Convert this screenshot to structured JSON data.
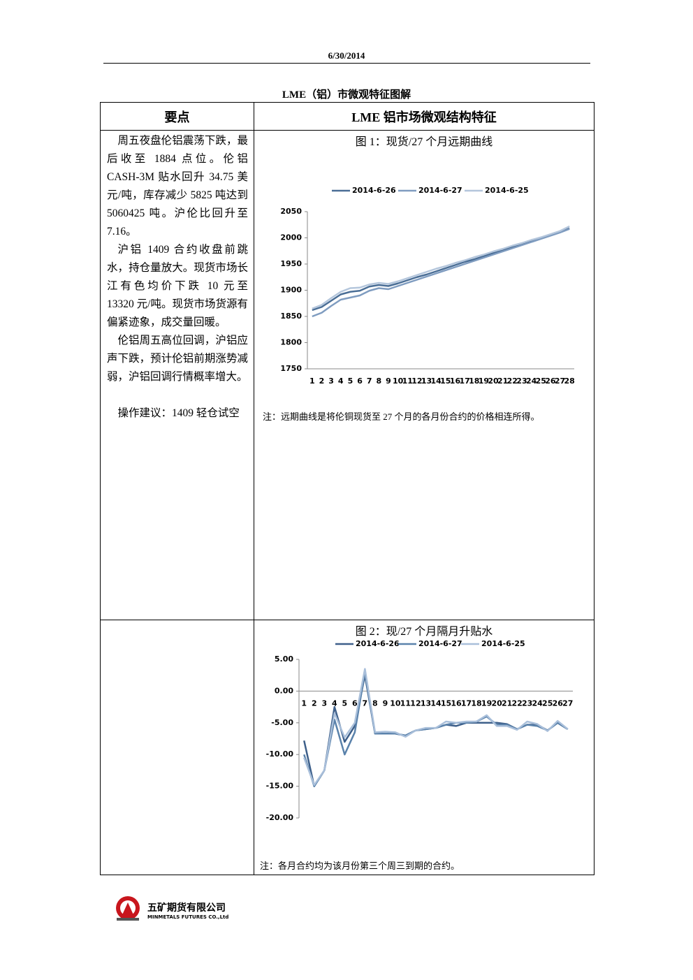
{
  "header": {
    "date": "6/30/2014"
  },
  "title": "LME（铝）市微观特征图解",
  "table": {
    "headers": [
      "要点",
      "LME 铝市场微观结构特征"
    ],
    "paragraphs": [
      "周五夜盘伦铝震荡下跌，最后收至 1884 点位。伦铝 CASH-3M 贴水回升 34.75 美元/吨，库存减少 5825 吨达到 5060425 吨。沪伦比回升至 7.16。",
      "沪铝 1409 合约收盘前跳水，持仓量放大。现货市场长江有色均价下跌 10 元至 13320 元/吨。现货市场货源有偏紧迹象，成交量回暖。",
      "伦铝周五高位回调，沪铝应声下跌，预计伦铝前期涨势减弱，沪铝回调行情概率增大。",
      "操作建议：1409 轻仓试空"
    ]
  },
  "chart_data": [
    {
      "type": "line",
      "title": "图 1：现货/27 个月远期曲线",
      "note": "注：远期曲线是将伦铜现货至 27 个月的各月份合约的价格相连所得。",
      "categories": [
        "1",
        "2",
        "3",
        "4",
        "5",
        "6",
        "7",
        "8",
        "9",
        "10",
        "11",
        "12",
        "13",
        "14",
        "15",
        "16",
        "17",
        "18",
        "19",
        "20",
        "21",
        "22",
        "23",
        "24",
        "25",
        "26",
        "27",
        "28"
      ],
      "series": [
        {
          "name": "2014-6-26",
          "color": "#4a6e96",
          "values": [
            1862,
            1868,
            1880,
            1892,
            1897,
            1899,
            1907,
            1910,
            1908,
            1913,
            1919,
            1925,
            1930,
            1936,
            1942,
            1948,
            1954,
            1959,
            1965,
            1971,
            1977,
            1983,
            1988,
            1994,
            2000,
            2006,
            2012,
            2018
          ]
        },
        {
          "name": "2014-6-27",
          "color": "#7f9cc0",
          "values": [
            1850,
            1857,
            1870,
            1882,
            1886,
            1890,
            1899,
            1904,
            1902,
            1908,
            1914,
            1920,
            1926,
            1932,
            1938,
            1944,
            1950,
            1956,
            1962,
            1968,
            1974,
            1980,
            1986,
            1992,
            1998,
            2004,
            2010,
            2017
          ]
        },
        {
          "name": "2014-6-25",
          "color": "#b4c6dc",
          "values": [
            1865,
            1872,
            1885,
            1897,
            1904,
            1905,
            1911,
            1914,
            1912,
            1917,
            1923,
            1929,
            1935,
            1941,
            1946,
            1952,
            1957,
            1963,
            1968,
            1974,
            1979,
            1985,
            1990,
            1996,
            2001,
            2007,
            2013,
            2022
          ]
        }
      ],
      "ylim": [
        1750,
        2050
      ],
      "yticks": [
        1750,
        1800,
        1850,
        1900,
        1950,
        2000,
        2050
      ],
      "grid": false
    },
    {
      "type": "line",
      "title": "图 2：现/27 个月隔月升贴水",
      "note": "注：各月合约均为该月份第三个周三到期的合约。",
      "categories": [
        "1",
        "2",
        "3",
        "4",
        "5",
        "6",
        "7",
        "8",
        "9",
        "10",
        "11",
        "12",
        "13",
        "14",
        "15",
        "16",
        "17",
        "18",
        "19",
        "20",
        "21",
        "22",
        "23",
        "24",
        "25",
        "26",
        "27"
      ],
      "series": [
        {
          "name": "2014-6-26",
          "color": "#3d5f8a",
          "values": [
            -7.8,
            -15,
            -12.5,
            -2.5,
            -8,
            -5.5,
            2.5,
            -6.7,
            -6.7,
            -6.7,
            -7,
            -6.2,
            -6,
            -5.8,
            -5.3,
            -5.5,
            -5,
            -5,
            -5,
            -5,
            -5.2,
            -6,
            -5.3,
            -5.3,
            -6.2,
            -5,
            -6
          ]
        },
        {
          "name": "2014-6-27",
          "color": "#5a82ab",
          "values": [
            -10,
            -15,
            -12.5,
            -4.5,
            -10,
            -6.5,
            3,
            -6.7,
            -6.7,
            -6.7,
            -7,
            -6.2,
            -6,
            -5.8,
            -5.3,
            -5,
            -5,
            -4.8,
            -4,
            -5.3,
            -5.3,
            -6,
            -5.3,
            -5.5,
            -6.2,
            -5,
            -6
          ]
        },
        {
          "name": "2014-6-25",
          "color": "#a9bfda",
          "values": [
            -10.5,
            -14.8,
            -12.5,
            -3.5,
            -7.3,
            -5,
            3.5,
            -6.5,
            -6.4,
            -6.5,
            -7.2,
            -6.2,
            -5.8,
            -5.8,
            -4.8,
            -5,
            -4.8,
            -4.8,
            -3.8,
            -5.5,
            -5.5,
            -6.1,
            -4.8,
            -5.2,
            -6.3,
            -4.7,
            -6
          ]
        }
      ],
      "ylim": [
        -20,
        5
      ],
      "yticks": [
        {
          "value": -20,
          "label": "-20.00"
        },
        {
          "value": -15,
          "label": "-15.00"
        },
        {
          "value": -10,
          "label": "-10.00"
        },
        {
          "value": -5,
          "label": "-5.00"
        },
        {
          "value": 0,
          "label": "0.00"
        },
        {
          "value": 5,
          "label": "5.00"
        }
      ],
      "grid": false
    }
  ],
  "footer": {
    "company": "五矿期货有限公司",
    "company_en": "MINMETALS FUTURES CO.,Ltd"
  }
}
